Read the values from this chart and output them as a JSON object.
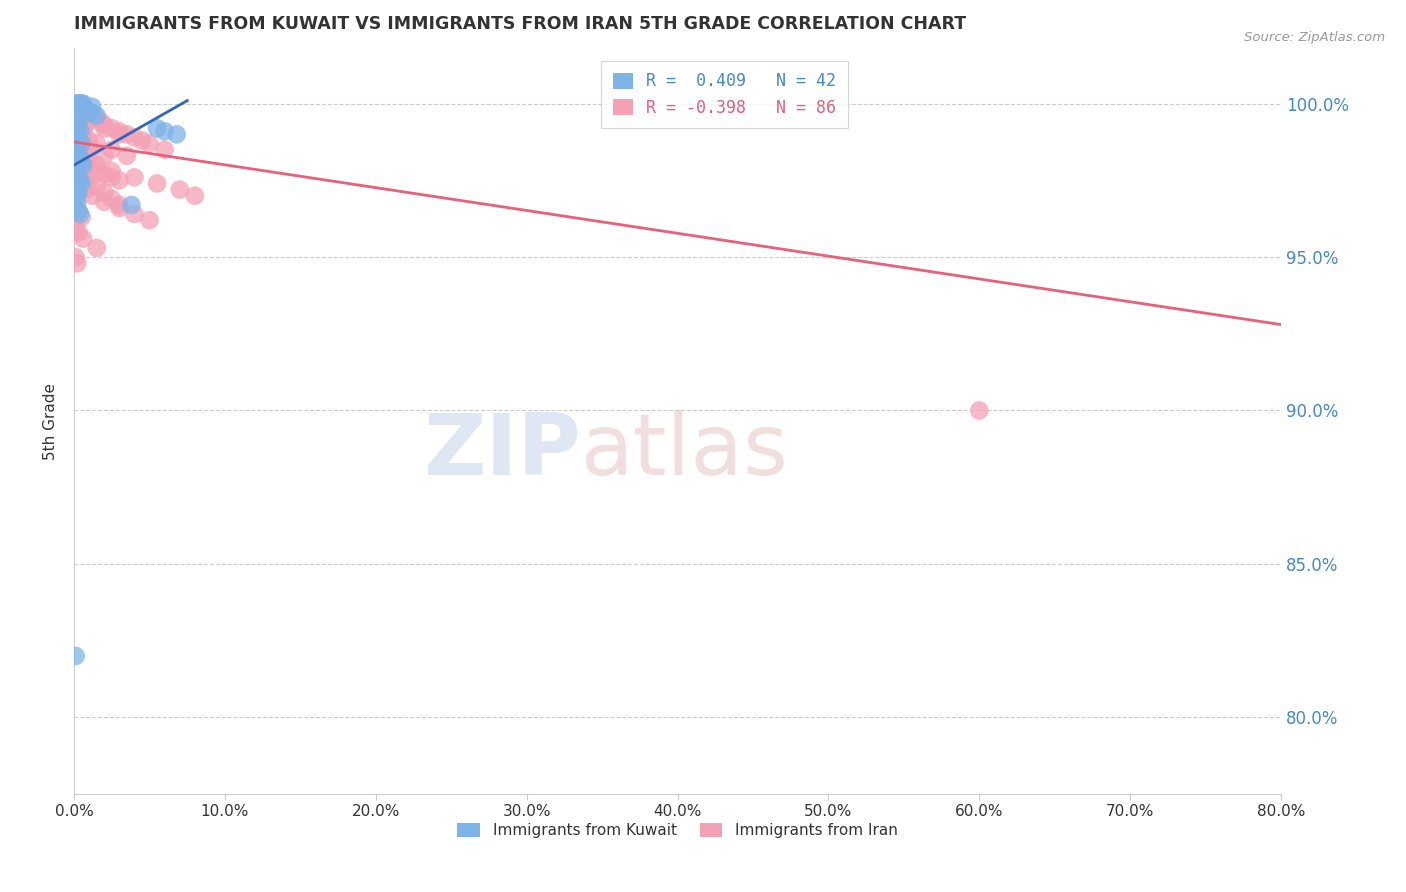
{
  "title": "IMMIGRANTS FROM KUWAIT VS IMMIGRANTS FROM IRAN 5TH GRADE CORRELATION CHART",
  "source": "Source: ZipAtlas.com",
  "ylabel": "5th Grade",
  "ytick_labels": [
    "100.0%",
    "95.0%",
    "90.0%",
    "85.0%",
    "80.0%"
  ],
  "ytick_values": [
    1.0,
    0.95,
    0.9,
    0.85,
    0.8
  ],
  "xlim": [
    0.0,
    0.8
  ],
  "ylim": [
    0.775,
    1.018
  ],
  "legend_kuwait": "R =  0.409   N = 42",
  "legend_iran": "R = -0.398   N = 86",
  "kuwait_color": "#7EB3E8",
  "iran_color": "#F4A0B5",
  "kuwait_line_color": "#3366BB",
  "iran_line_color": "#E8607A",
  "kuwait_scatter_x": [
    0.002,
    0.003,
    0.004,
    0.005,
    0.006,
    0.007,
    0.008,
    0.01,
    0.012,
    0.015,
    0.001,
    0.002,
    0.003,
    0.004,
    0.002,
    0.003,
    0.005,
    0.001,
    0.002,
    0.003,
    0.004,
    0.005,
    0.006,
    0.001,
    0.002,
    0.003,
    0.004,
    0.005,
    0.002,
    0.003,
    0.001,
    0.002,
    0.038,
    0.055,
    0.06,
    0.068,
    0.003,
    0.004,
    0.001,
    0.002,
    0.003,
    0.012
  ],
  "kuwait_scatter_y": [
    1.0,
    1.0,
    1.0,
    1.0,
    1.0,
    0.998,
    0.998,
    0.997,
    0.997,
    0.996,
    0.994,
    0.993,
    0.992,
    0.991,
    0.989,
    0.988,
    0.987,
    0.985,
    0.984,
    0.983,
    0.982,
    0.981,
    0.98,
    0.978,
    0.977,
    0.976,
    0.975,
    0.974,
    0.972,
    0.971,
    0.969,
    0.968,
    0.967,
    0.992,
    0.991,
    0.99,
    0.965,
    0.964,
    0.82,
    0.995,
    0.994,
    0.999
  ],
  "iran_scatter_x": [
    0.001,
    0.002,
    0.003,
    0.004,
    0.005,
    0.006,
    0.007,
    0.008,
    0.01,
    0.012,
    0.015,
    0.018,
    0.02,
    0.025,
    0.03,
    0.035,
    0.04,
    0.045,
    0.05,
    0.06,
    0.001,
    0.002,
    0.003,
    0.004,
    0.005,
    0.006,
    0.007,
    0.01,
    0.015,
    0.02,
    0.025,
    0.03,
    0.003,
    0.005,
    0.008,
    0.012,
    0.02,
    0.03,
    0.04,
    0.05,
    0.002,
    0.004,
    0.006,
    0.008,
    0.01,
    0.015,
    0.02,
    0.025,
    0.03,
    0.002,
    0.005,
    0.01,
    0.02,
    0.001,
    0.003,
    0.006,
    0.01,
    0.015,
    0.025,
    0.035,
    0.002,
    0.004,
    0.008,
    0.015,
    0.025,
    0.04,
    0.055,
    0.07,
    0.08,
    0.001,
    0.003,
    0.007,
    0.001,
    0.004,
    0.009,
    0.02,
    0.03,
    0.001,
    0.003,
    0.006,
    0.015,
    0.002,
    0.005,
    0.001,
    0.6,
    0.002
  ],
  "iran_scatter_y": [
    1.0,
    1.0,
    1.0,
    1.0,
    0.999,
    0.999,
    0.998,
    0.998,
    0.997,
    0.996,
    0.995,
    0.994,
    0.993,
    0.992,
    0.991,
    0.99,
    0.989,
    0.988,
    0.987,
    0.985,
    0.983,
    0.982,
    0.981,
    0.98,
    0.979,
    0.978,
    0.977,
    0.975,
    0.973,
    0.971,
    0.969,
    0.967,
    0.976,
    0.974,
    0.972,
    0.97,
    0.968,
    0.966,
    0.964,
    0.962,
    0.984,
    0.983,
    0.982,
    0.981,
    0.98,
    0.978,
    0.977,
    0.976,
    0.975,
    0.988,
    0.987,
    0.985,
    0.983,
    0.992,
    0.991,
    0.99,
    0.988,
    0.987,
    0.985,
    0.983,
    0.986,
    0.984,
    0.982,
    0.98,
    0.978,
    0.976,
    0.974,
    0.972,
    0.97,
    0.994,
    0.993,
    0.992,
    0.997,
    0.996,
    0.994,
    0.992,
    0.99,
    0.96,
    0.958,
    0.956,
    0.953,
    0.965,
    0.963,
    0.95,
    0.9,
    0.948
  ],
  "kuwait_line_x": [
    0.0,
    0.075
  ],
  "kuwait_line_y": [
    0.98,
    1.001
  ],
  "iran_line_x": [
    0.0,
    0.8
  ],
  "iran_line_y": [
    0.9875,
    0.928
  ],
  "background_color": "#FFFFFF",
  "grid_color": "#CCCCCC",
  "title_color": "#333333",
  "axis_label_color": "#333333",
  "right_axis_color": "#4488CC",
  "bottom_legend_kuwait": "Immigrants from Kuwait",
  "bottom_legend_iran": "Immigrants from Iran"
}
